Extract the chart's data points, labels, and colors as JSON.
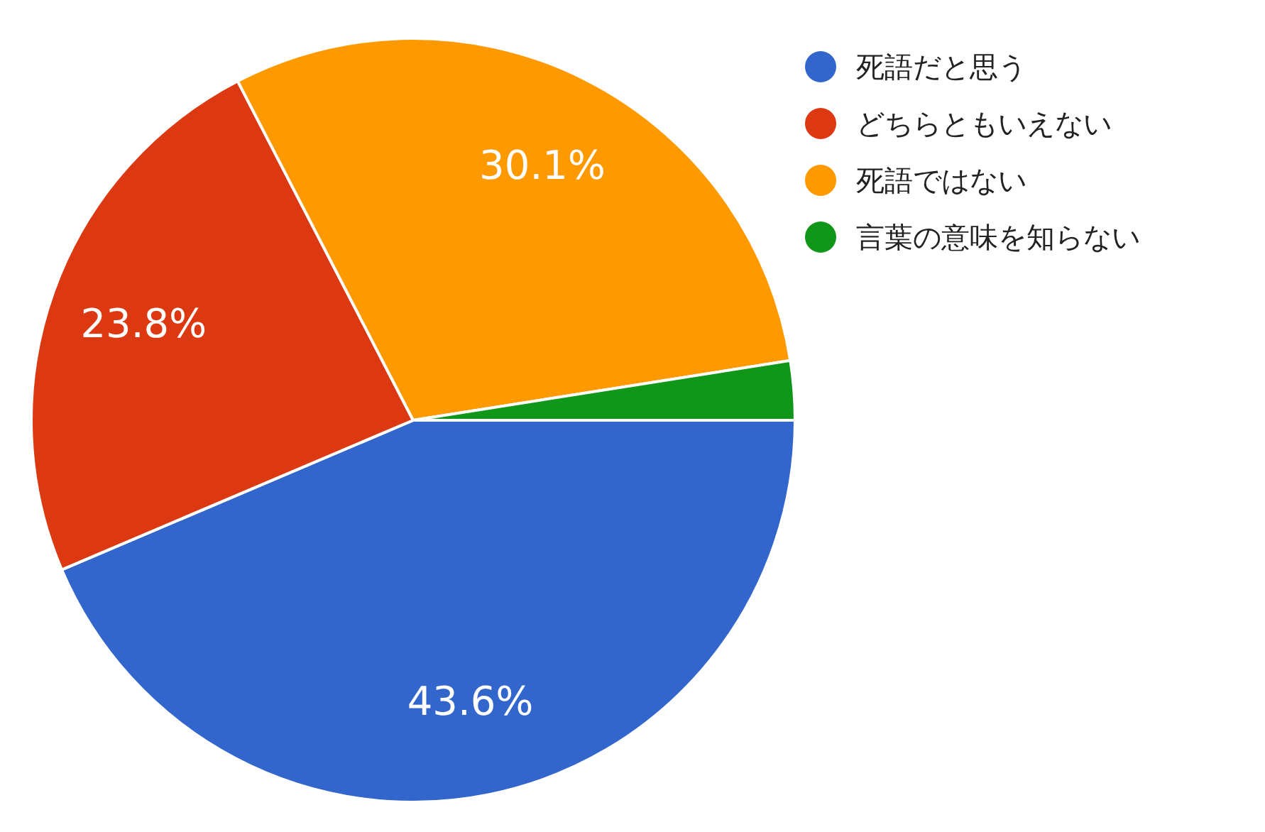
{
  "chart_data": {
    "type": "pie",
    "categories": [
      "死語だと思う",
      "どちらともいえない",
      "死語ではない",
      "言葉の意味を知らない"
    ],
    "values": [
      43.6,
      23.8,
      30.1,
      2.5
    ],
    "colors": [
      "#3366cc",
      "#dc3912",
      "#ff9900",
      "#109618"
    ],
    "value_labels": [
      "43.6%",
      "23.8%",
      "30.1%",
      null
    ],
    "legend": "top right"
  }
}
